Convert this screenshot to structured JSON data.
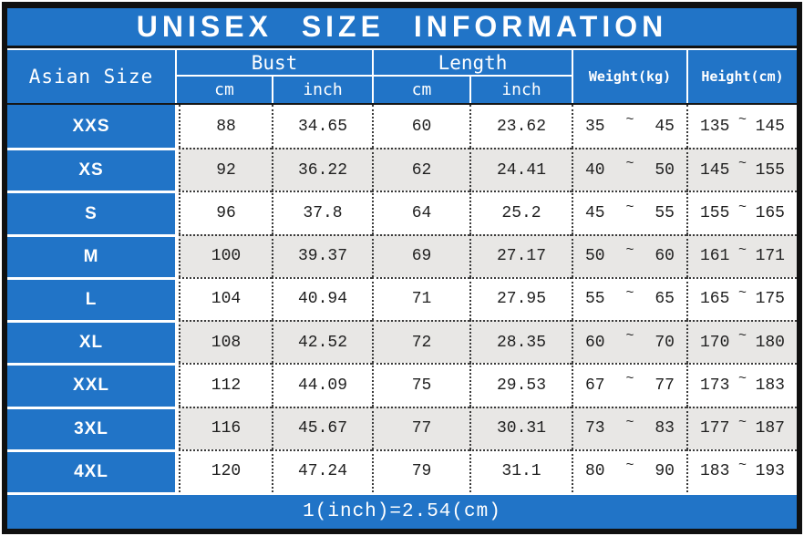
{
  "title": "UNISEX SIZE INFORMATION",
  "colors": {
    "header_blue": "#2174C7",
    "row_alt_gray": "#E8E7E5",
    "frame_black": "#101010",
    "text_dark": "#1F1F1F",
    "text_white": "#FFFFFF"
  },
  "table": {
    "tilde": "~",
    "headers": {
      "asian_size": "Asian Size",
      "bust": "Bust",
      "length": "Length",
      "cm": "cm",
      "inch": "inch",
      "weight": "Weight(kg)",
      "height": "Height(cm)"
    },
    "rows": [
      {
        "size": "XXS",
        "bust_cm": "88",
        "bust_inch": "34.65",
        "length_cm": "60",
        "length_inch": "23.62",
        "weight_min": "35",
        "weight_max": "45",
        "height_min": "135",
        "height_max": "145"
      },
      {
        "size": "XS",
        "bust_cm": "92",
        "bust_inch": "36.22",
        "length_cm": "62",
        "length_inch": "24.41",
        "weight_min": "40",
        "weight_max": "50",
        "height_min": "145",
        "height_max": "155"
      },
      {
        "size": "S",
        "bust_cm": "96",
        "bust_inch": "37.8",
        "length_cm": "64",
        "length_inch": "25.2",
        "weight_min": "45",
        "weight_max": "55",
        "height_min": "155",
        "height_max": "165"
      },
      {
        "size": "M",
        "bust_cm": "100",
        "bust_inch": "39.37",
        "length_cm": "69",
        "length_inch": "27.17",
        "weight_min": "50",
        "weight_max": "60",
        "height_min": "161",
        "height_max": "171"
      },
      {
        "size": "L",
        "bust_cm": "104",
        "bust_inch": "40.94",
        "length_cm": "71",
        "length_inch": "27.95",
        "weight_min": "55",
        "weight_max": "65",
        "height_min": "165",
        "height_max": "175"
      },
      {
        "size": "XL",
        "bust_cm": "108",
        "bust_inch": "42.52",
        "length_cm": "72",
        "length_inch": "28.35",
        "weight_min": "60",
        "weight_max": "70",
        "height_min": "170",
        "height_max": "180"
      },
      {
        "size": "XXL",
        "bust_cm": "112",
        "bust_inch": "44.09",
        "length_cm": "75",
        "length_inch": "29.53",
        "weight_min": "67",
        "weight_max": "77",
        "height_min": "173",
        "height_max": "183"
      },
      {
        "size": "3XL",
        "bust_cm": "116",
        "bust_inch": "45.67",
        "length_cm": "77",
        "length_inch": "30.31",
        "weight_min": "73",
        "weight_max": "83",
        "height_min": "177",
        "height_max": "187"
      },
      {
        "size": "4XL",
        "bust_cm": "120",
        "bust_inch": "47.24",
        "length_cm": "79",
        "length_inch": "31.1",
        "weight_min": "80",
        "weight_max": "90",
        "height_min": "183",
        "height_max": "193"
      }
    ]
  },
  "footer": {
    "note": "1(inch)=2.54(cm)"
  }
}
